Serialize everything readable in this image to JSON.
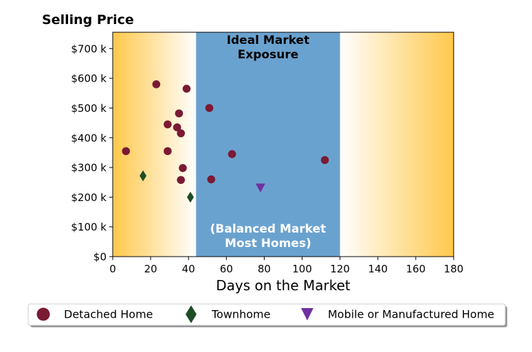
{
  "chart_data": {
    "type": "scatter",
    "title": "Selling Price",
    "xlabel": "Days on the Market",
    "ylabel": "",
    "xlim": [
      0,
      180
    ],
    "ylim": [
      0,
      755
    ],
    "x_ticks": [
      0,
      20,
      40,
      60,
      80,
      100,
      120,
      140,
      160,
      180
    ],
    "y_ticks": [
      0,
      100,
      200,
      300,
      400,
      500,
      600,
      700
    ],
    "y_tick_labels": [
      "$0",
      "$100 k",
      "$200 k",
      "$300 k",
      "$400 k",
      "$500 k",
      "$600 k",
      "$700 k"
    ],
    "grid": false,
    "legend_position": "bottom",
    "band": {
      "x_range": [
        44,
        120
      ],
      "color": "#6aa2cf",
      "label_top": [
        "Ideal Market",
        "Exposure"
      ],
      "label_bottom": [
        "(Balanced Market",
        "Most Homes)"
      ]
    },
    "background_gradient": {
      "edge": "#ffc84a",
      "center": "#ffffff"
    },
    "series": [
      {
        "name": "Detached Home",
        "marker": "circle",
        "color": "#7b1a33",
        "points": [
          [
            7,
            355
          ],
          [
            23,
            580
          ],
          [
            29,
            445
          ],
          [
            29,
            355
          ],
          [
            34,
            435
          ],
          [
            35,
            482
          ],
          [
            36,
            415
          ],
          [
            36,
            258
          ],
          [
            37,
            298
          ],
          [
            39,
            565
          ],
          [
            51,
            500
          ],
          [
            52,
            260
          ],
          [
            63,
            345
          ],
          [
            112,
            325
          ]
        ]
      },
      {
        "name": "Townhome",
        "marker": "diamond",
        "color": "#1e4d25",
        "points": [
          [
            16,
            272
          ],
          [
            41,
            200
          ]
        ]
      },
      {
        "name": "Mobile or Manufactured Home",
        "marker": "triangle-down",
        "color": "#7030a0",
        "points": [
          [
            78,
            232
          ]
        ]
      }
    ]
  }
}
